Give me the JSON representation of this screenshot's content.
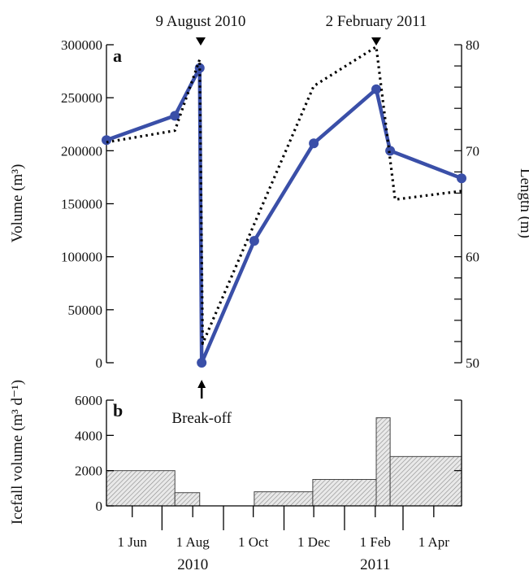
{
  "chart_data": [
    {
      "panel": "a",
      "type": "line",
      "x_axis": {
        "type": "date",
        "range": [
          "2010-05-06",
          "2011-04-29"
        ],
        "ticks": [
          {
            "date": "2010-06-01",
            "label": "1 Jun"
          },
          {
            "date": "2010-08-01",
            "label": "1 Aug"
          },
          {
            "date": "2010-10-01",
            "label": "1 Oct"
          },
          {
            "date": "2010-12-01",
            "label": "1 Dec"
          },
          {
            "date": "2011-02-01",
            "label": "1 Feb"
          },
          {
            "date": "2011-04-01",
            "label": "1 Apr"
          }
        ],
        "minor_ticks": [
          "2010-05-01",
          "2010-07-01",
          "2010-09-01",
          "2010-11-01",
          "2011-01-01",
          "2011-03-01"
        ],
        "year_labels": [
          {
            "label": "2010",
            "date": "2010-08-01"
          },
          {
            "label": "2011",
            "date": "2011-02-01"
          }
        ]
      },
      "y_left": {
        "label": "Volume (m³)",
        "range": [
          0,
          300000
        ],
        "ticks": [
          0,
          50000,
          100000,
          150000,
          200000,
          250000,
          300000
        ]
      },
      "y_right": {
        "label": "Length (m)",
        "range": [
          50,
          80
        ],
        "ticks": [
          50,
          60,
          70,
          80
        ]
      },
      "series": [
        {
          "style": "solid",
          "color": "#3A4FA8",
          "axis": "left",
          "points": [
            {
              "x": "2010-05-06",
              "y": 210000
            },
            {
              "x": "2010-07-14",
              "y": 233000
            },
            {
              "x": "2010-08-08",
              "y": 278000
            },
            {
              "x": "2010-08-10",
              "y": 0
            },
            {
              "x": "2010-10-02",
              "y": 115000
            },
            {
              "x": "2010-12-01",
              "y": 207000
            },
            {
              "x": "2011-02-02",
              "y": 258000
            },
            {
              "x": "2011-02-16",
              "y": 200000
            },
            {
              "x": "2011-04-29",
              "y": 174000
            }
          ]
        },
        {
          "style": "dotted",
          "color": "#000000",
          "axis": "right",
          "points": [
            {
              "x": "2010-05-06",
              "y": 70.8
            },
            {
              "x": "2010-07-14",
              "y": 71.9
            },
            {
              "x": "2010-08-08",
              "y": 78.6
            },
            {
              "x": "2010-08-11",
              "y": 51.8
            },
            {
              "x": "2010-12-01",
              "y": 76.1
            },
            {
              "x": "2011-02-02",
              "y": 79.8
            },
            {
              "x": "2011-02-21",
              "y": 65.4
            },
            {
              "x": "2011-04-29",
              "y": 66.2
            }
          ]
        }
      ],
      "annotations": [
        {
          "text": "9 August 2010",
          "x": "2010-08-09",
          "marker": "down-triangle"
        },
        {
          "text": "2 February 2011",
          "x": "2011-02-02",
          "marker": "down-triangle"
        },
        {
          "text": "Break-off",
          "x": "2010-08-10",
          "marker": "up-arrow"
        }
      ]
    },
    {
      "panel": "b",
      "type": "bar",
      "style": "hatched-step",
      "y_axis": {
        "label": "Icefall volume (m³ d⁻¹)",
        "range": [
          0,
          6000
        ],
        "ticks": [
          0,
          2000,
          4000,
          6000
        ]
      },
      "bars": [
        {
          "start": "2010-05-06",
          "end": "2010-07-14",
          "value": 2000
        },
        {
          "start": "2010-07-14",
          "end": "2010-08-08",
          "value": 750
        },
        {
          "start": "2010-10-02",
          "end": "2010-11-30",
          "value": 800
        },
        {
          "start": "2010-11-30",
          "end": "2011-02-02",
          "value": 1500
        },
        {
          "start": "2011-02-02",
          "end": "2011-02-16",
          "value": 5000
        },
        {
          "start": "2011-02-16",
          "end": "2011-04-29",
          "value": 2800
        }
      ]
    }
  ]
}
